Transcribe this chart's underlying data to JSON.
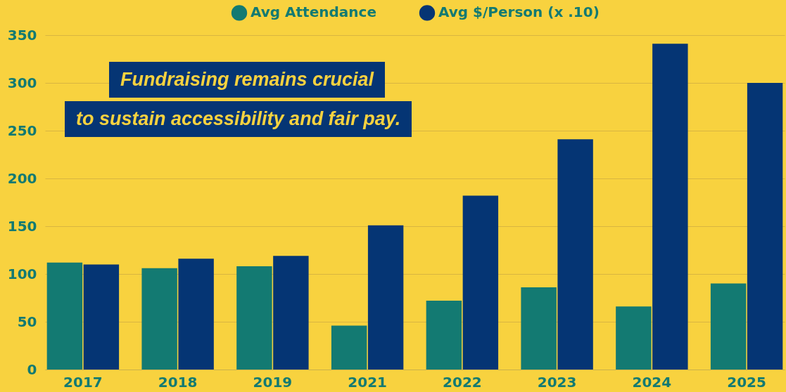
{
  "chart_data": {
    "type": "bar",
    "categories": [
      "2017",
      "2018",
      "2019",
      "2021",
      "2022",
      "2023",
      "2024",
      "2025"
    ],
    "series": [
      {
        "name": "Avg Attendance",
        "color": "#137a72",
        "values": [
          112,
          106,
          108,
          46,
          72,
          86,
          66,
          90
        ]
      },
      {
        "name": "Avg $/Person (x .10)",
        "color": "#053574",
        "values": [
          110,
          116,
          119,
          151,
          182,
          241,
          341,
          300
        ]
      }
    ],
    "ylim": [
      0,
      350
    ],
    "yticks": [
      0,
      50,
      100,
      150,
      200,
      250,
      300,
      350
    ],
    "grid": "y",
    "legend": "top",
    "annotations": [
      "Fundraising remains crucial",
      "to sustain accessibility and fair pay."
    ]
  }
}
